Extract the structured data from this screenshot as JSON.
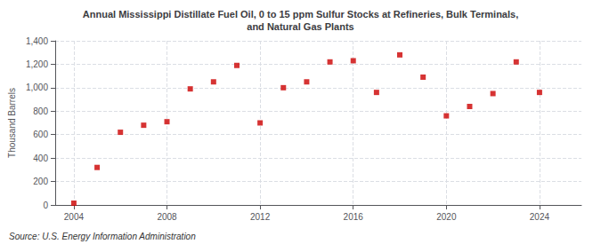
{
  "chart_data": {
    "type": "scatter",
    "title": "Annual Mississippi Distillate Fuel Oil, 0 to 15 ppm Sulfur Stocks at Refineries, Bulk Terminals,\nand Natural Gas Plants",
    "y_label": "Thousand Barrels",
    "source": "Source: U.S. Energy Information Administration",
    "x": [
      2004,
      2005,
      2006,
      2007,
      2008,
      2009,
      2010,
      2011,
      2012,
      2013,
      2014,
      2015,
      2016,
      2017,
      2018,
      2019,
      2020,
      2021,
      2022,
      2023,
      2024
    ],
    "values": [
      15,
      320,
      620,
      680,
      710,
      990,
      1050,
      1190,
      700,
      1000,
      1050,
      1220,
      1230,
      960,
      1280,
      1090,
      760,
      840,
      950,
      1220,
      960
    ],
    "color": "#cc0000",
    "marker": "square",
    "xlim": [
      2003.2,
      2025.8
    ],
    "xticks": [
      2004,
      2008,
      2012,
      2016,
      2020,
      2024
    ],
    "ylim": [
      0,
      1400
    ],
    "yticks": [
      0,
      200,
      400,
      600,
      800,
      {
        "value": 1000,
        "label": "1,000"
      },
      {
        "value": 1200,
        "label": "1,200"
      },
      {
        "value": 1400,
        "label": "1,400"
      }
    ],
    "grid": true
  }
}
